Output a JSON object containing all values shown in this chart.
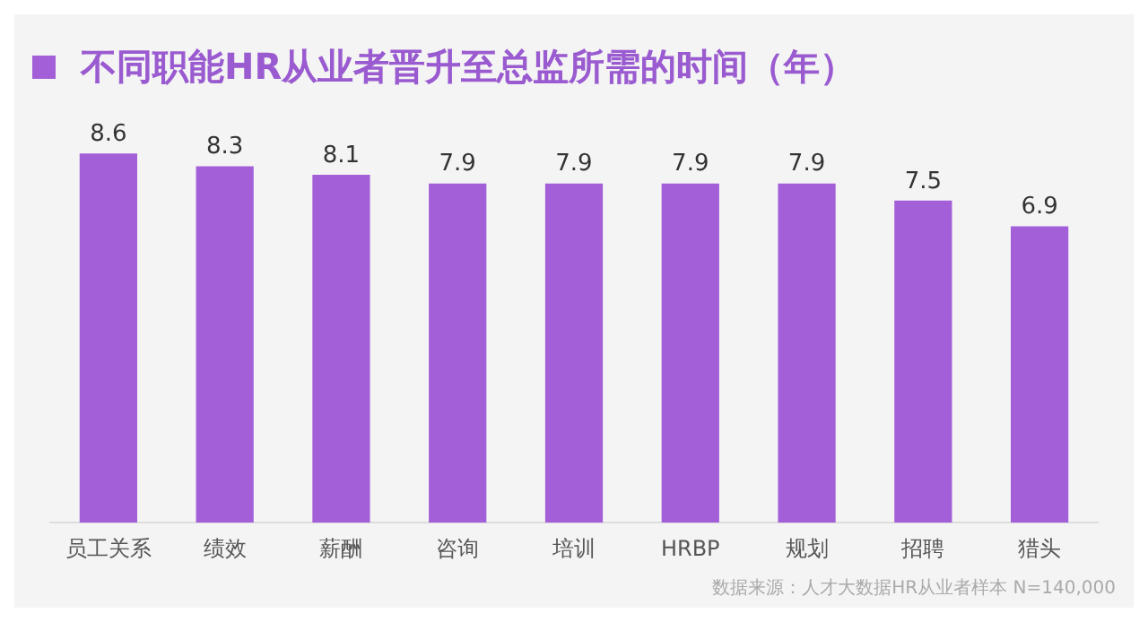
{
  "chart_data": {
    "type": "bar",
    "title": "不同职能HR从业者晋升至总监所需的时间（年）",
    "categories": [
      "员工关系",
      "绩效",
      "薪酬",
      "咨询",
      "培训",
      "HRBP",
      "规划",
      "招聘",
      "猎头"
    ],
    "values": [
      8.6,
      8.3,
      8.1,
      7.9,
      7.9,
      7.9,
      7.9,
      7.5,
      6.9
    ],
    "color": "#a35fd8",
    "data_labels": true,
    "grid": false,
    "legend": false,
    "annotations": [
      "数据来源：人才大数据HR从业者样本 N=140,000"
    ]
  }
}
